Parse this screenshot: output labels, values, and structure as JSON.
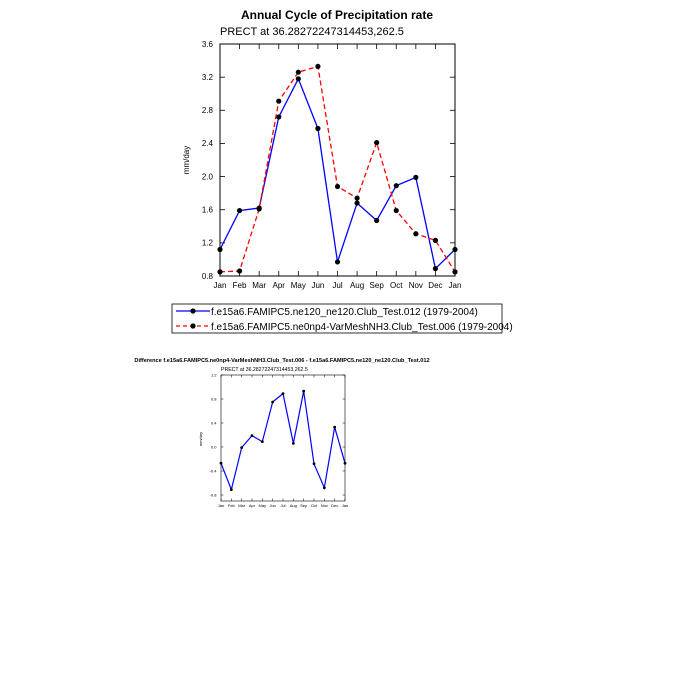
{
  "chart_data": [
    {
      "type": "line",
      "title": "Annual Cycle of Precipitation rate",
      "subtitle": "PRECT at 36.28272247314453,262.5",
      "ylabel": "mm/day",
      "ylim": [
        0.8,
        3.6
      ],
      "yticks": [
        "0.8",
        "1.2",
        "1.6",
        "2.0",
        "2.4",
        "2.8",
        "3.2",
        "3.6"
      ],
      "categories": [
        "Jan",
        "Feb",
        "Mar",
        "Apr",
        "May",
        "Jun",
        "Jul",
        "Aug",
        "Sep",
        "Oct",
        "Nov",
        "Dec",
        "Jan"
      ],
      "legend_placement": "below",
      "series": [
        {
          "name": "f.e15a6.FAMIPC5.ne120_ne120.Club_Test.012 (1979-2004)",
          "color": "#0000ff",
          "dash": "solid",
          "values": [
            1.12,
            1.59,
            1.62,
            2.72,
            3.18,
            2.58,
            0.97,
            1.68,
            1.47,
            1.89,
            1.99,
            0.89,
            1.12
          ]
        },
        {
          "name": "f.e15a6.FAMIPC5.ne0np4-VarMeshNH3.Club_Test.006 (1979-2004)",
          "color": "#ff0000",
          "dash": "dashed",
          "values": [
            0.85,
            0.86,
            1.61,
            2.91,
            3.26,
            3.33,
            1.88,
            1.74,
            2.41,
            1.59,
            1.31,
            1.23,
            0.85
          ]
        }
      ]
    },
    {
      "type": "line",
      "title": "Difference f.e15a6.FAMIPC5.ne0np4-VarMeshNH3.Club_Test.006 - f.e15a6.FAMIPC5.ne120_ne120.Club_Test.012",
      "subtitle": "PRECT at 36.28272247314453,262.5",
      "ylabel": "mm/day",
      "ylim": [
        -0.9,
        1.2
      ],
      "yticks": [
        "-0.8",
        "-0.4",
        "0.0",
        "0.4",
        "0.8",
        "1.2"
      ],
      "categories": [
        "Jan",
        "Feb",
        "Mar",
        "Apr",
        "May",
        "Jun",
        "Jul",
        "Aug",
        "Sep",
        "Oct",
        "Nov",
        "Dec",
        "Jan"
      ],
      "series": [
        {
          "color": "#0000ff",
          "values": [
            -0.27,
            -0.71,
            -0.01,
            0.19,
            0.09,
            0.75,
            0.89,
            0.06,
            0.93,
            -0.28,
            -0.68,
            0.33,
            -0.27
          ]
        }
      ]
    }
  ]
}
